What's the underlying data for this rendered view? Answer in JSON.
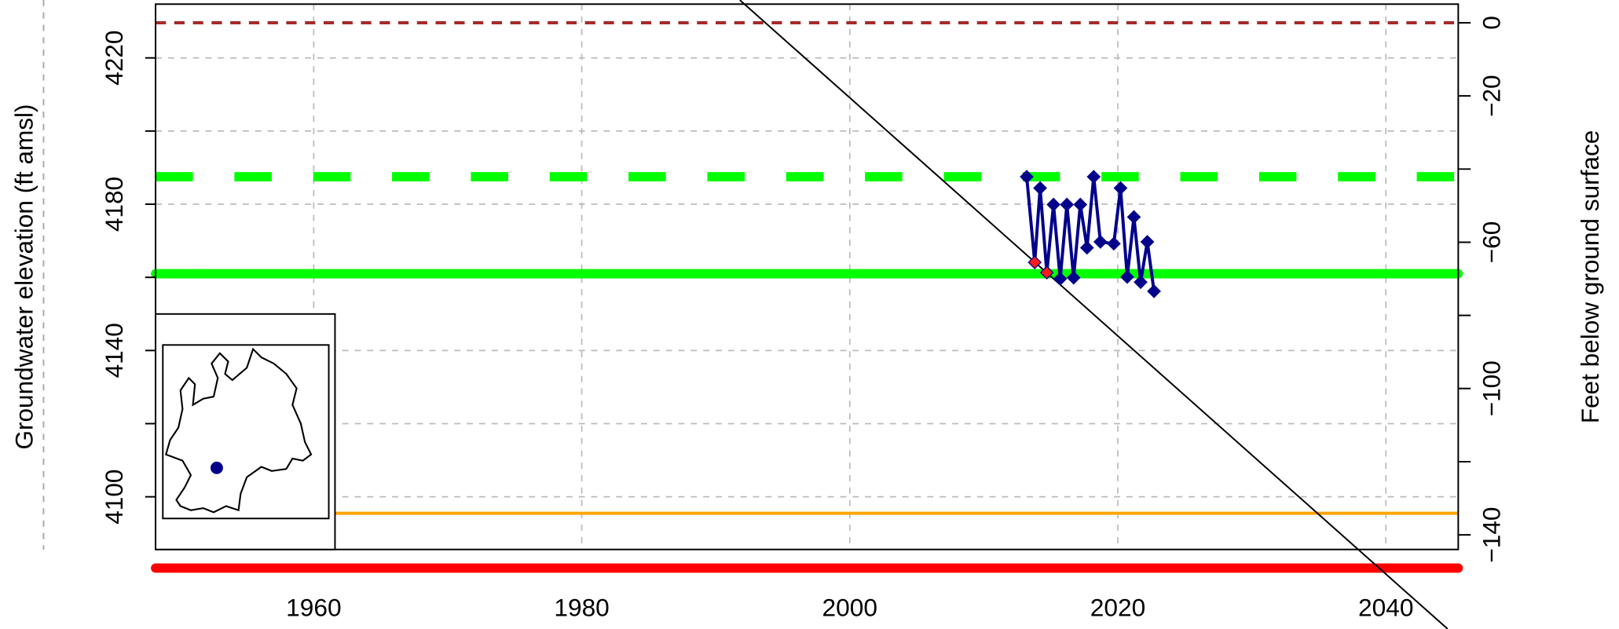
{
  "chart_data": {
    "type": "line",
    "ylabel": "Groundwater elevation (ft amsl)",
    "y2label": "Feet below ground surface",
    "xlim": [
      1948.2,
      2045.4
    ],
    "xticks": [
      1960,
      1980,
      2000,
      2020,
      2040
    ],
    "ylim": [
      4085.6,
      4234.7
    ],
    "yticks": [
      4100,
      4140,
      4180,
      4220
    ],
    "yminor_ticks": [
      4120,
      4160,
      4200
    ],
    "y2lim": [
      -144,
      5.1
    ],
    "y2ticks": [
      0,
      {
        "value": -20,
        "label": "−20"
      },
      {
        "value": -60,
        "label": "−60"
      },
      {
        "value": -100,
        "label": "−100"
      },
      {
        "value": -140,
        "label": "−140"
      }
    ],
    "y2minor_ticks": [
      -40,
      -80,
      -120
    ],
    "grid": true,
    "series": [
      {
        "color": "#00008b",
        "x": [
          2013.2,
          2013.8,
          2014.2,
          2014.7,
          2015.2,
          2015.7,
          2016.2,
          2016.7,
          2017.2,
          2017.7,
          2018.2,
          2018.7,
          2019.7,
          2020.2,
          2020.7,
          2021.2,
          2021.7,
          2022.2,
          2022.7
        ],
        "values": [
          4187.5,
          4164.1,
          4184.4,
          4161.3,
          4179.9,
          4159.6,
          4179.9,
          4159.9,
          4179.9,
          4168.1,
          4187.5,
          4169.7,
          4169.2,
          4184.4,
          4160.1,
          4176.5,
          4158.7,
          4169.7,
          4156.2
        ],
        "highlight": [
          1,
          3
        ],
        "highlight_color": "#ff1a1a"
      }
    ],
    "hlines": [
      {
        "value": 0,
        "axis": "y2",
        "color": "#a52a2a",
        "style": "dashed"
      },
      {
        "value": 4187.5,
        "color": "#00ff00",
        "style": "thick-dashed"
      },
      {
        "value": 4161.0,
        "color": "#00ff00",
        "style": "thick"
      },
      {
        "value": 4095.5,
        "color": "#ffa500",
        "style": "thin"
      },
      {
        "value": 4080.5,
        "color": "#ff0000",
        "style": "thick"
      }
    ],
    "trend": {
      "color": "#000000",
      "x": [
        1991.8,
        2044.6
      ],
      "values": [
        4235.8,
        4063.9
      ]
    }
  }
}
